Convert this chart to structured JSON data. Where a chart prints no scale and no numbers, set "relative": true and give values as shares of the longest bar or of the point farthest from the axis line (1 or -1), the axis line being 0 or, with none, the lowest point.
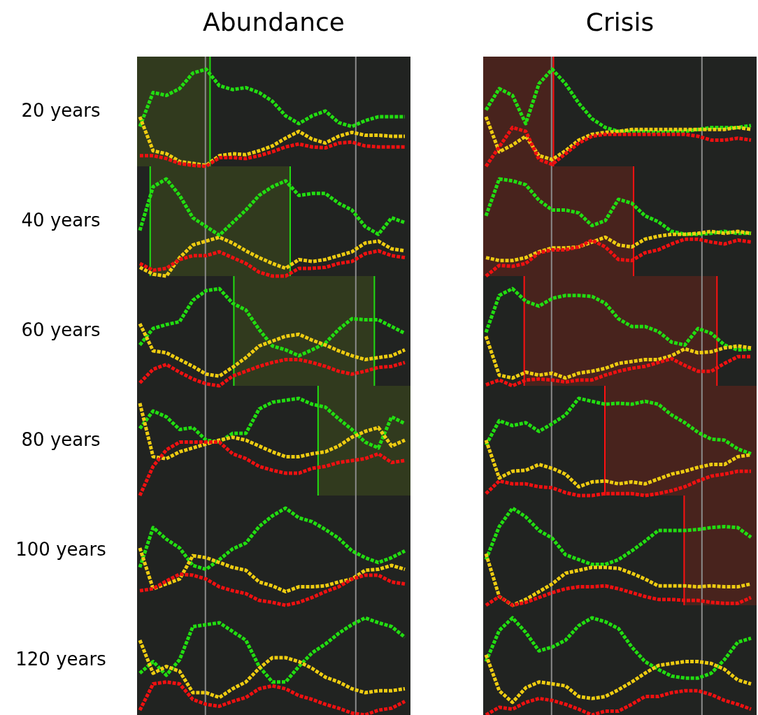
{
  "chart_data": [
    {
      "type": "line",
      "line_style": "dotted",
      "title": "Abundance",
      "ylabel": "20 years",
      "relative": true,
      "categories": [
        null,
        null,
        null,
        null,
        null,
        null,
        null,
        null,
        null,
        null,
        null,
        null,
        null,
        null,
        null,
        null,
        null,
        null,
        null,
        null,
        null
      ],
      "series": [
        {
          "color": "#22dd11",
          "values": [
            0.41,
            0.76,
            0.73,
            0.8,
            0.96,
            1,
            0.83,
            0.79,
            0.81,
            0.76,
            0.67,
            0.52,
            0.44,
            0.52,
            0.57,
            0.45,
            0.41,
            0.47,
            0.51,
            0.51,
            0.51
          ]
        },
        {
          "color": "#eecc11",
          "values": [
            0.51,
            0.16,
            0.13,
            0.05,
            0.03,
            0.01,
            0.11,
            0.13,
            0.12,
            0.16,
            0.21,
            0.29,
            0.36,
            0.28,
            0.24,
            0.31,
            0.35,
            0.32,
            0.32,
            0.31,
            0.31
          ]
        },
        {
          "color": "#ee1111",
          "values": [
            0.11,
            0.11,
            0.08,
            0.03,
            0.01,
            0,
            0.09,
            0.09,
            0.08,
            0.11,
            0.15,
            0.2,
            0.23,
            0.2,
            0.19,
            0.24,
            0.25,
            0.21,
            0.2,
            0.2,
            0.2
          ]
        }
      ]
    },
    {
      "type": "line",
      "line_style": "dotted",
      "title": "Crisis",
      "relative": true,
      "categories": [
        null,
        null,
        null,
        null,
        null,
        null,
        null,
        null,
        null,
        null,
        null,
        null,
        null,
        null,
        null,
        null,
        null,
        null,
        null,
        null,
        null
      ],
      "series": [
        {
          "color": "#22dd11",
          "values": [
            0.58,
            0.8,
            0.73,
            0.44,
            0.85,
            1,
            0.85,
            0.65,
            0.49,
            0.4,
            0.36,
            0.36,
            0.36,
            0.35,
            0.36,
            0.36,
            0.38,
            0.4,
            0.4,
            0.4,
            0.42
          ]
        },
        {
          "color": "#eecc11",
          "values": [
            0.51,
            0.15,
            0.22,
            0.31,
            0.11,
            0.07,
            0.16,
            0.27,
            0.33,
            0.35,
            0.36,
            0.38,
            0.38,
            0.38,
            0.38,
            0.38,
            0.38,
            0.38,
            0.38,
            0.4,
            0.38
          ]
        },
        {
          "color": "#ee1111",
          "values": [
            0,
            0.2,
            0.4,
            0.36,
            0.07,
            0.02,
            0.13,
            0.24,
            0.31,
            0.33,
            0.33,
            0.33,
            0.33,
            0.33,
            0.33,
            0.33,
            0.31,
            0.27,
            0.27,
            0.29,
            0.27
          ]
        }
      ]
    },
    {
      "type": "line",
      "line_style": "dotted",
      "ylabel": "40 years",
      "relative": true,
      "categories": [
        null,
        null,
        null,
        null,
        null,
        null,
        null,
        null,
        null,
        null,
        null,
        null,
        null,
        null,
        null,
        null,
        null,
        null,
        null,
        null,
        null
      ],
      "series": [
        {
          "color": "#22dd11",
          "values": [
            0.47,
            0.92,
            1,
            0.83,
            0.6,
            0.51,
            0.42,
            0.55,
            0.68,
            0.83,
            0.92,
            0.98,
            0.83,
            0.85,
            0.85,
            0.75,
            0.68,
            0.51,
            0.43,
            0.6,
            0.55
          ]
        },
        {
          "color": "#eecc11",
          "values": [
            0.09,
            0.02,
            0,
            0.19,
            0.32,
            0.36,
            0.4,
            0.34,
            0.26,
            0.19,
            0.13,
            0.08,
            0.17,
            0.15,
            0.17,
            0.21,
            0.25,
            0.34,
            0.36,
            0.28,
            0.26
          ]
        },
        {
          "color": "#ee1111",
          "values": [
            0.13,
            0.06,
            0.08,
            0.17,
            0.21,
            0.21,
            0.25,
            0.19,
            0.13,
            0.04,
            0,
            0,
            0.08,
            0.08,
            0.09,
            0.13,
            0.15,
            0.23,
            0.26,
            0.21,
            0.19
          ]
        }
      ]
    },
    {
      "type": "line",
      "line_style": "dotted",
      "relative": true,
      "categories": [
        null,
        null,
        null,
        null,
        null,
        null,
        null,
        null,
        null,
        null,
        null,
        null,
        null,
        null,
        null,
        null,
        null,
        null,
        null,
        null,
        null
      ],
      "series": [
        {
          "color": "#22dd11",
          "values": [
            0.62,
            1,
            0.98,
            0.94,
            0.78,
            0.68,
            0.68,
            0.65,
            0.52,
            0.57,
            0.79,
            0.75,
            0.62,
            0.56,
            0.46,
            0.43,
            0.43,
            0.44,
            0.46,
            0.44,
            0.44
          ]
        },
        {
          "color": "#eecc11",
          "values": [
            0.19,
            0.16,
            0.16,
            0.19,
            0.25,
            0.29,
            0.29,
            0.3,
            0.35,
            0.4,
            0.32,
            0.3,
            0.38,
            0.41,
            0.43,
            0.43,
            0.44,
            0.46,
            0.44,
            0.46,
            0.44
          ]
        },
        {
          "color": "#ee1111",
          "values": [
            0,
            0.11,
            0.1,
            0.13,
            0.24,
            0.27,
            0.27,
            0.3,
            0.37,
            0.3,
            0.17,
            0.16,
            0.24,
            0.27,
            0.33,
            0.38,
            0.38,
            0.35,
            0.33,
            0.37,
            0.35
          ]
        }
      ]
    },
    {
      "type": "line",
      "line_style": "dotted",
      "ylabel": "60 years",
      "relative": true,
      "categories": [
        null,
        null,
        null,
        null,
        null,
        null,
        null,
        null,
        null,
        null,
        null,
        null,
        null,
        null,
        null,
        null,
        null,
        null,
        null,
        null,
        null
      ],
      "series": [
        {
          "color": "#22dd11",
          "values": [
            0.42,
            0.59,
            0.63,
            0.66,
            0.88,
            0.98,
            1,
            0.85,
            0.78,
            0.58,
            0.41,
            0.37,
            0.31,
            0.37,
            0.44,
            0.58,
            0.69,
            0.68,
            0.68,
            0.61,
            0.54
          ]
        },
        {
          "color": "#eecc11",
          "values": [
            0.64,
            0.36,
            0.34,
            0.27,
            0.2,
            0.12,
            0.1,
            0.19,
            0.29,
            0.41,
            0.46,
            0.51,
            0.53,
            0.47,
            0.42,
            0.36,
            0.31,
            0.27,
            0.29,
            0.31,
            0.37
          ]
        },
        {
          "color": "#ee1111",
          "values": [
            0.03,
            0.17,
            0.22,
            0.14,
            0.07,
            0.02,
            0,
            0.1,
            0.15,
            0.2,
            0.24,
            0.27,
            0.27,
            0.24,
            0.2,
            0.15,
            0.12,
            0.15,
            0.19,
            0.2,
            0.24
          ]
        }
      ]
    },
    {
      "type": "line",
      "line_style": "dotted",
      "relative": true,
      "categories": [
        null,
        null,
        null,
        null,
        null,
        null,
        null,
        null,
        null,
        null,
        null,
        null,
        null,
        null,
        null,
        null,
        null,
        null,
        null,
        null,
        null
      ],
      "series": [
        {
          "color": "#22dd11",
          "values": [
            0.55,
            0.93,
            1,
            0.87,
            0.82,
            0.9,
            0.93,
            0.93,
            0.92,
            0.85,
            0.69,
            0.61,
            0.61,
            0.56,
            0.45,
            0.42,
            0.59,
            0.54,
            0.42,
            0.37,
            0.38
          ]
        },
        {
          "color": "#eecc11",
          "values": [
            0.51,
            0.11,
            0.08,
            0.14,
            0.11,
            0.13,
            0.08,
            0.13,
            0.15,
            0.18,
            0.23,
            0.25,
            0.27,
            0.27,
            0.31,
            0.38,
            0.34,
            0.35,
            0.39,
            0.41,
            0.39
          ]
        },
        {
          "color": "#ee1111",
          "values": [
            0.01,
            0.06,
            0,
            0.06,
            0.07,
            0.06,
            0.04,
            0.06,
            0.06,
            0.11,
            0.15,
            0.18,
            0.2,
            0.24,
            0.28,
            0.21,
            0.15,
            0.15,
            0.23,
            0.3,
            0.3
          ]
        }
      ]
    },
    {
      "type": "line",
      "line_style": "dotted",
      "ylabel": "80 years",
      "relative": true,
      "categories": [
        null,
        null,
        null,
        null,
        null,
        null,
        null,
        null,
        null,
        null,
        null,
        null,
        null,
        null,
        null,
        null,
        null,
        null,
        null,
        null,
        null
      ],
      "series": [
        {
          "color": "#22dd11",
          "values": [
            0.69,
            0.87,
            0.81,
            0.68,
            0.7,
            0.57,
            0.55,
            0.64,
            0.64,
            0.89,
            0.96,
            0.98,
            1,
            0.94,
            0.91,
            0.79,
            0.68,
            0.55,
            0.49,
            0.81,
            0.74
          ]
        },
        {
          "color": "#eecc11",
          "values": [
            0.95,
            0.4,
            0.38,
            0.45,
            0.49,
            0.53,
            0.57,
            0.6,
            0.57,
            0.51,
            0.45,
            0.4,
            0.4,
            0.43,
            0.45,
            0.51,
            0.6,
            0.66,
            0.7,
            0.51,
            0.57
          ]
        },
        {
          "color": "#ee1111",
          "values": [
            0,
            0.3,
            0.47,
            0.55,
            0.55,
            0.55,
            0.55,
            0.43,
            0.38,
            0.3,
            0.26,
            0.23,
            0.23,
            0.28,
            0.3,
            0.34,
            0.36,
            0.38,
            0.43,
            0.34,
            0.36
          ]
        }
      ]
    },
    {
      "type": "line",
      "line_style": "dotted",
      "relative": true,
      "categories": [
        null,
        null,
        null,
        null,
        null,
        null,
        null,
        null,
        null,
        null,
        null,
        null,
        null,
        null,
        null,
        null,
        null,
        null,
        null,
        null,
        null
      ],
      "series": [
        {
          "color": "#22dd11",
          "values": [
            0.52,
            0.77,
            0.72,
            0.75,
            0.66,
            0.74,
            0.83,
            1,
            0.97,
            0.94,
            0.95,
            0.94,
            0.97,
            0.94,
            0.83,
            0.75,
            0.65,
            0.58,
            0.57,
            0.48,
            0.43
          ]
        },
        {
          "color": "#eecc11",
          "values": [
            0.57,
            0.18,
            0.25,
            0.26,
            0.32,
            0.28,
            0.22,
            0.09,
            0.14,
            0.15,
            0.12,
            0.14,
            0.12,
            0.17,
            0.22,
            0.25,
            0.29,
            0.32,
            0.32,
            0.4,
            0.42
          ]
        },
        {
          "color": "#ee1111",
          "values": [
            0.02,
            0.15,
            0.12,
            0.12,
            0.09,
            0.08,
            0.03,
            0,
            0,
            0.02,
            0.02,
            0.02,
            0,
            0.02,
            0.05,
            0.09,
            0.15,
            0.2,
            0.22,
            0.25,
            0.25
          ]
        }
      ]
    },
    {
      "type": "line",
      "line_style": "dotted",
      "ylabel": "100 years",
      "relative": true,
      "categories": [
        null,
        null,
        null,
        null,
        null,
        null,
        null,
        null,
        null,
        null,
        null,
        null,
        null,
        null,
        null,
        null,
        null,
        null,
        null,
        null,
        null
      ],
      "series": [
        {
          "color": "#22dd11",
          "values": [
            0.39,
            0.8,
            0.68,
            0.59,
            0.41,
            0.37,
            0.47,
            0.58,
            0.64,
            0.81,
            0.92,
            1,
            0.9,
            0.86,
            0.78,
            0.69,
            0.56,
            0.49,
            0.44,
            0.49,
            0.56
          ]
        },
        {
          "color": "#eecc11",
          "values": [
            0.59,
            0.17,
            0.22,
            0.27,
            0.51,
            0.49,
            0.44,
            0.39,
            0.36,
            0.24,
            0.2,
            0.14,
            0.19,
            0.19,
            0.2,
            0.24,
            0.27,
            0.36,
            0.37,
            0.41,
            0.37
          ]
        },
        {
          "color": "#ee1111",
          "values": [
            0.15,
            0.17,
            0.25,
            0.32,
            0.31,
            0.27,
            0.19,
            0.15,
            0.12,
            0.05,
            0.03,
            0,
            0.03,
            0.08,
            0.14,
            0.19,
            0.27,
            0.31,
            0.31,
            0.24,
            0.22
          ]
        }
      ]
    },
    {
      "type": "line",
      "line_style": "dotted",
      "relative": true,
      "categories": [
        null,
        null,
        null,
        null,
        null,
        null,
        null,
        null,
        null,
        null,
        null,
        null,
        null,
        null,
        null,
        null,
        null,
        null,
        null,
        null,
        null
      ],
      "series": [
        {
          "color": "#22dd11",
          "values": [
            0.47,
            0.81,
            1,
            0.91,
            0.77,
            0.69,
            0.52,
            0.47,
            0.42,
            0.42,
            0.47,
            0.56,
            0.66,
            0.77,
            0.77,
            0.77,
            0.78,
            0.8,
            0.81,
            0.8,
            0.7
          ]
        },
        {
          "color": "#eecc11",
          "values": [
            0.53,
            0.09,
            0,
            0.06,
            0.14,
            0.22,
            0.33,
            0.36,
            0.39,
            0.39,
            0.38,
            0.33,
            0.27,
            0.2,
            0.2,
            0.2,
            0.19,
            0.2,
            0.19,
            0.19,
            0.22
          ]
        },
        {
          "color": "#ee1111",
          "values": [
            0,
            0.09,
            0,
            0.03,
            0.08,
            0.13,
            0.17,
            0.19,
            0.19,
            0.2,
            0.17,
            0.13,
            0.09,
            0.06,
            0.06,
            0.05,
            0.05,
            0.03,
            0.02,
            0.02,
            0.08
          ]
        }
      ]
    },
    {
      "type": "line",
      "line_style": "dotted",
      "ylabel": "120 years",
      "relative": true,
      "categories": [
        null,
        null,
        null,
        null,
        null,
        null,
        null,
        null,
        null,
        null,
        null,
        null,
        null,
        null,
        null,
        null,
        null,
        null,
        null,
        null,
        null
      ],
      "series": [
        {
          "color": "#22dd11",
          "values": [
            0.43,
            0.55,
            0.41,
            0.57,
            0.91,
            0.93,
            0.95,
            0.86,
            0.77,
            0.5,
            0.34,
            0.34,
            0.5,
            0.64,
            0.73,
            0.84,
            0.93,
            1,
            0.95,
            0.91,
            0.8
          ]
        },
        {
          "color": "#eecc11",
          "values": [
            0.77,
            0.43,
            0.5,
            0.45,
            0.23,
            0.23,
            0.18,
            0.27,
            0.34,
            0.48,
            0.59,
            0.59,
            0.55,
            0.48,
            0.39,
            0.34,
            0.27,
            0.23,
            0.25,
            0.25,
            0.27
          ]
        },
        {
          "color": "#ee1111",
          "values": [
            0.05,
            0.32,
            0.34,
            0.32,
            0.16,
            0.11,
            0.09,
            0.14,
            0.18,
            0.27,
            0.3,
            0.27,
            0.2,
            0.16,
            0.11,
            0.07,
            0.02,
            0,
            0.05,
            0.07,
            0.14
          ]
        }
      ]
    },
    {
      "type": "line",
      "line_style": "dotted",
      "relative": true,
      "categories": [
        null,
        null,
        null,
        null,
        null,
        null,
        null,
        null,
        null,
        null,
        null,
        null,
        null,
        null,
        null,
        null,
        null,
        null,
        null,
        null,
        null
      ],
      "series": [
        {
          "color": "#22dd11",
          "values": [
            0.55,
            0.87,
            1,
            0.85,
            0.66,
            0.7,
            0.77,
            0.92,
            1,
            0.96,
            0.89,
            0.7,
            0.55,
            0.47,
            0.4,
            0.38,
            0.38,
            0.43,
            0.57,
            0.75,
            0.79
          ]
        },
        {
          "color": "#eecc11",
          "values": [
            0.62,
            0.25,
            0.13,
            0.28,
            0.34,
            0.32,
            0.3,
            0.19,
            0.17,
            0.19,
            0.26,
            0.34,
            0.43,
            0.51,
            0.53,
            0.55,
            0.55,
            0.53,
            0.47,
            0.36,
            0.32
          ]
        },
        {
          "color": "#ee1111",
          "values": [
            0,
            0.08,
            0.06,
            0.13,
            0.17,
            0.15,
            0.11,
            0.06,
            0,
            0.04,
            0.04,
            0.11,
            0.19,
            0.19,
            0.23,
            0.25,
            0.25,
            0.21,
            0.15,
            0.11,
            0.06
          ]
        }
      ]
    }
  ]
}
